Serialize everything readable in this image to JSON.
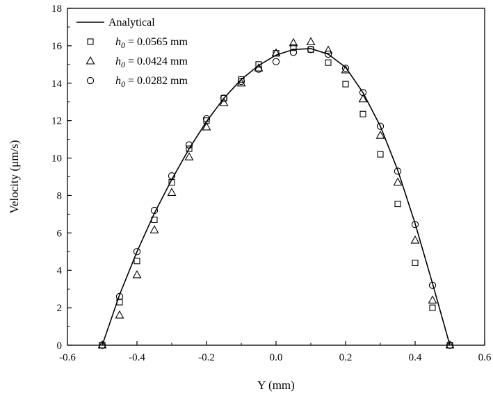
{
  "chart_data": {
    "type": "scatter",
    "xlabel": "Y (mm)",
    "ylabel": "Velocity (μm/s)",
    "xlim": [
      -0.6,
      0.6
    ],
    "ylim": [
      0,
      18
    ],
    "xticks": [
      "-0.6",
      "-0.4",
      "-0.2",
      "0.0",
      "0.2",
      "0.4",
      "0.6"
    ],
    "xtick_values": [
      -0.6,
      -0.4,
      -0.2,
      0.0,
      0.2,
      0.4,
      0.6
    ],
    "yticks": [
      "0",
      "2",
      "4",
      "6",
      "8",
      "10",
      "12",
      "14",
      "16",
      "18"
    ],
    "ytick_values": [
      0,
      2,
      4,
      6,
      8,
      10,
      12,
      14,
      16,
      18
    ],
    "grid": false,
    "legend_position": "top-left",
    "series": [
      {
        "name": "Analytical",
        "style": "line",
        "color": "#000000",
        "x": [
          -0.5,
          -0.45,
          -0.4,
          -0.35,
          -0.3,
          -0.25,
          -0.2,
          -0.15,
          -0.1,
          -0.05,
          0.0,
          0.05,
          0.1,
          0.15,
          0.2,
          0.25,
          0.3,
          0.35,
          0.4,
          0.45,
          0.5
        ],
        "y": [
          0.0,
          2.7,
          5.0,
          7.05,
          8.85,
          10.5,
          11.95,
          13.2,
          14.2,
          14.95,
          15.5,
          15.8,
          15.85,
          15.55,
          14.85,
          13.5,
          11.7,
          9.35,
          6.5,
          3.3,
          0.0
        ]
      },
      {
        "name": "h_0 = 0.0565 mm",
        "legend_symbol": "h",
        "legend_subscript": "0",
        "legend_value": " = 0.0565 mm",
        "style": "marker",
        "marker": "square",
        "x": [
          -0.5,
          -0.45,
          -0.4,
          -0.35,
          -0.3,
          -0.25,
          -0.2,
          -0.15,
          -0.1,
          -0.05,
          0.0,
          0.05,
          0.1,
          0.15,
          0.2,
          0.25,
          0.3,
          0.35,
          0.4,
          0.45,
          0.5
        ],
        "y": [
          0.0,
          2.3,
          4.5,
          6.7,
          8.7,
          10.5,
          12.0,
          13.2,
          14.2,
          15.0,
          15.6,
          15.9,
          15.8,
          15.1,
          13.95,
          12.35,
          10.2,
          7.55,
          4.4,
          2.0,
          0.0
        ]
      },
      {
        "name": "h_0 = 0.0424 mm",
        "legend_symbol": "h",
        "legend_subscript": "0",
        "legend_value": " = 0.0424 mm",
        "style": "marker",
        "marker": "triangle",
        "x": [
          -0.5,
          -0.45,
          -0.4,
          -0.35,
          -0.3,
          -0.25,
          -0.2,
          -0.15,
          -0.1,
          -0.05,
          0.0,
          0.05,
          0.1,
          0.15,
          0.2,
          0.25,
          0.3,
          0.35,
          0.4,
          0.45,
          0.5
        ],
        "y": [
          0.0,
          1.6,
          3.75,
          6.15,
          8.15,
          10.05,
          11.65,
          12.95,
          14.0,
          14.8,
          15.6,
          16.15,
          16.2,
          15.75,
          14.7,
          13.15,
          11.2,
          8.7,
          5.6,
          2.4,
          0.0
        ]
      },
      {
        "name": "h_0 = 0.0282 mm",
        "legend_symbol": "h",
        "legend_subscript": "0",
        "legend_value": " = 0.0282 mm",
        "style": "marker",
        "marker": "circle",
        "x": [
          -0.5,
          -0.45,
          -0.4,
          -0.35,
          -0.3,
          -0.25,
          -0.2,
          -0.15,
          -0.1,
          -0.05,
          0.0,
          0.05,
          0.1,
          0.15,
          0.2,
          0.25,
          0.3,
          0.35,
          0.4,
          0.45,
          0.5
        ],
        "y": [
          0.0,
          2.6,
          5.0,
          7.2,
          9.05,
          10.7,
          12.1,
          13.2,
          14.1,
          14.75,
          15.15,
          15.65,
          15.8,
          15.55,
          14.8,
          13.5,
          11.7,
          9.3,
          6.45,
          3.2,
          0.0
        ]
      }
    ]
  }
}
